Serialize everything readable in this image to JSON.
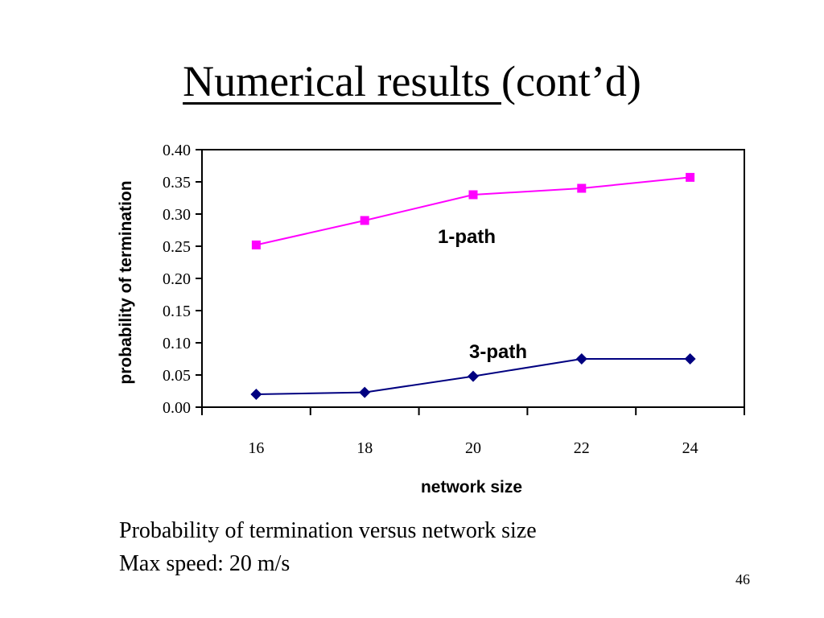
{
  "slide": {
    "title_main": "Numerical results ",
    "title_suffix": "(cont’d)",
    "caption_line_1": "Probability of termination versus network size",
    "caption_line_2": "Max speed: 20 m/s",
    "page_number": "46"
  },
  "chart_data": {
    "type": "line",
    "title": "",
    "xlabel": "network size",
    "ylabel": "probability of termination",
    "x": [
      16,
      18,
      20,
      22,
      24
    ],
    "x_tick_labels": [
      "16",
      "18",
      "20",
      "22",
      "24"
    ],
    "ylim": [
      0,
      0.4
    ],
    "y_ticks": [
      0,
      0.05,
      0.1,
      0.15,
      0.2,
      0.25,
      0.3,
      0.35,
      0.4
    ],
    "y_tick_labels": [
      "0.00",
      "0.05",
      "0.10",
      "0.15",
      "0.20",
      "0.25",
      "0.30",
      "0.35",
      "0.40"
    ],
    "grid": false,
    "series": [
      {
        "name": "1-path",
        "values": [
          0.252,
          0.29,
          0.33,
          0.34,
          0.357
        ],
        "color": "#ff00ff",
        "marker": "square"
      },
      {
        "name": "3-path",
        "values": [
          0.02,
          0.023,
          0.048,
          0.075,
          0.075
        ],
        "color": "#000080",
        "marker": "diamond"
      }
    ]
  }
}
